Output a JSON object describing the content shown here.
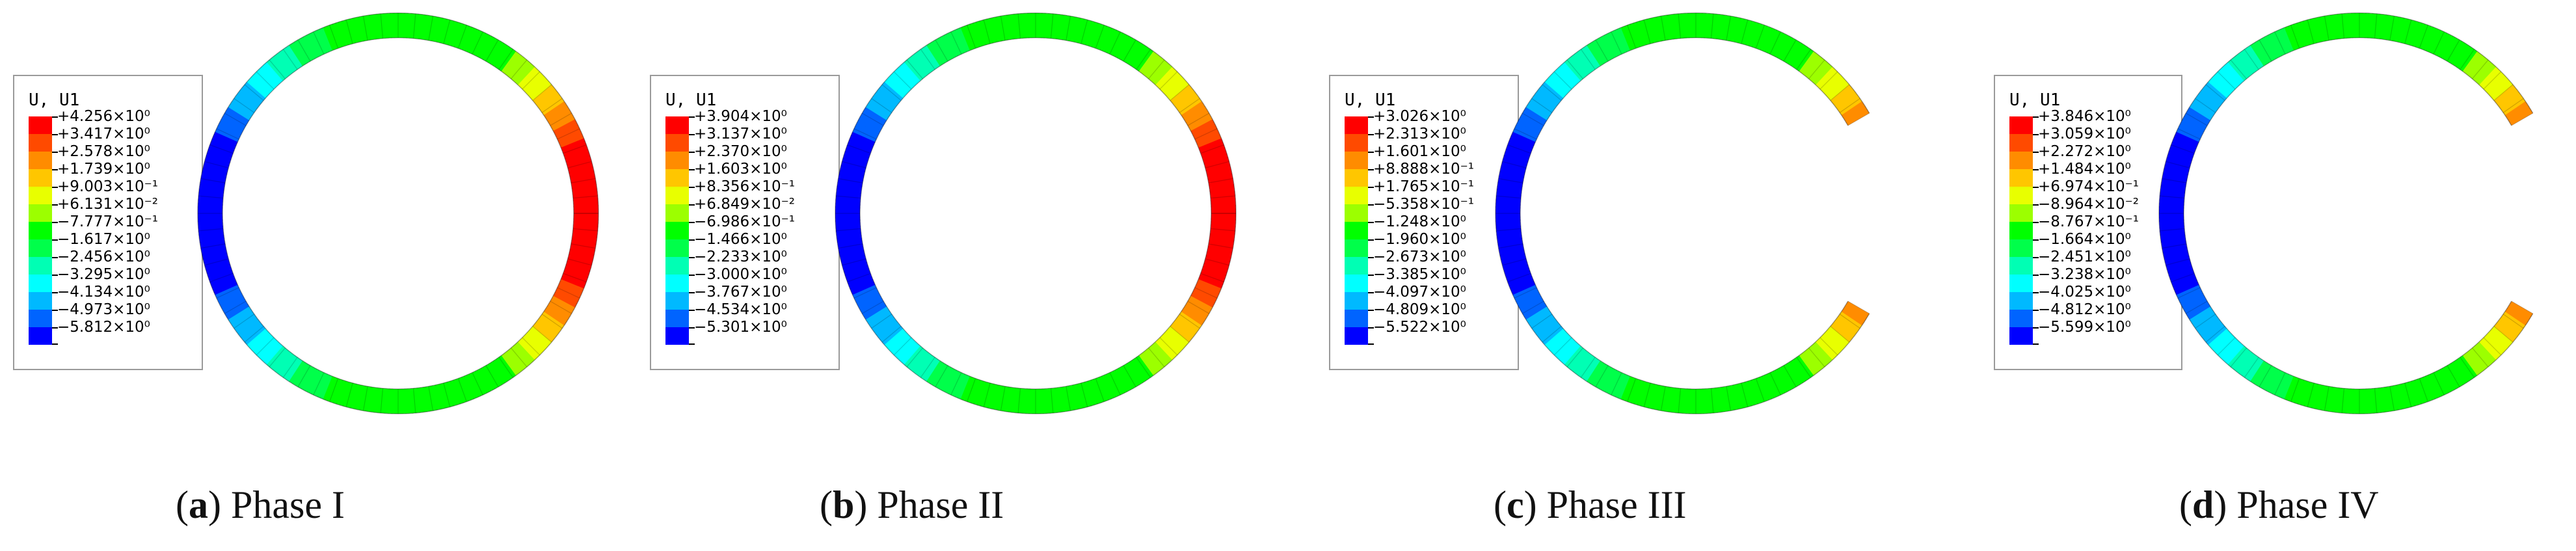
{
  "scale_colors": [
    "#ff0000",
    "#ff4a00",
    "#ff8c00",
    "#ffc600",
    "#e8ff00",
    "#9cff00",
    "#00ff00",
    "#00ff4a",
    "#00ffb4",
    "#00ffff",
    "#00b9ff",
    "#0064ff",
    "#0000ff"
  ],
  "panels": [
    {
      "legend_title": "U, U1",
      "legend_values": [
        "+4.256×10⁰",
        "+3.417×10⁰",
        "+2.578×10⁰",
        "+1.739×10⁰",
        "+9.003×10⁻¹",
        "+6.131×10⁻²",
        "−7.777×10⁻¹",
        "−1.617×10⁰",
        "−2.456×10⁰",
        "−3.295×10⁰",
        "−4.134×10⁰",
        "−4.973×10⁰",
        "−5.812×10⁰"
      ],
      "caption_letter": "a",
      "caption_text": "Phase I",
      "ring_open": false
    },
    {
      "legend_title": "U, U1",
      "legend_values": [
        "+3.904×10⁰",
        "+3.137×10⁰",
        "+2.370×10⁰",
        "+1.603×10⁰",
        "+8.356×10⁻¹",
        "+6.849×10⁻²",
        "−6.986×10⁻¹",
        "−1.466×10⁰",
        "−2.233×10⁰",
        "−3.000×10⁰",
        "−3.767×10⁰",
        "−4.534×10⁰",
        "−5.301×10⁰"
      ],
      "caption_letter": "b",
      "caption_text": "Phase II",
      "ring_open": false
    },
    {
      "legend_title": "U, U1",
      "legend_values": [
        "+3.026×10⁰",
        "+2.313×10⁰",
        "+1.601×10⁰",
        "+8.888×10⁻¹",
        "+1.765×10⁻¹",
        "−5.358×10⁻¹",
        "−1.248×10⁰",
        "−1.960×10⁰",
        "−2.673×10⁰",
        "−3.385×10⁰",
        "−4.097×10⁰",
        "−4.809×10⁰",
        "−5.522×10⁰"
      ],
      "caption_letter": "c",
      "caption_text": "Phase III",
      "ring_open": true
    },
    {
      "legend_title": "U, U1",
      "legend_values": [
        "+3.846×10⁰",
        "+3.059×10⁰",
        "+2.272×10⁰",
        "+1.484×10⁰",
        "+6.974×10⁻¹",
        "−8.964×10⁻²",
        "−8.767×10⁻¹",
        "−1.664×10⁰",
        "−2.451×10⁰",
        "−3.238×10⁰",
        "−4.025×10⁰",
        "−4.812×10⁰",
        "−5.599×10⁰"
      ],
      "caption_letter": "d",
      "caption_text": "Phase IV",
      "ring_open": true
    }
  ]
}
